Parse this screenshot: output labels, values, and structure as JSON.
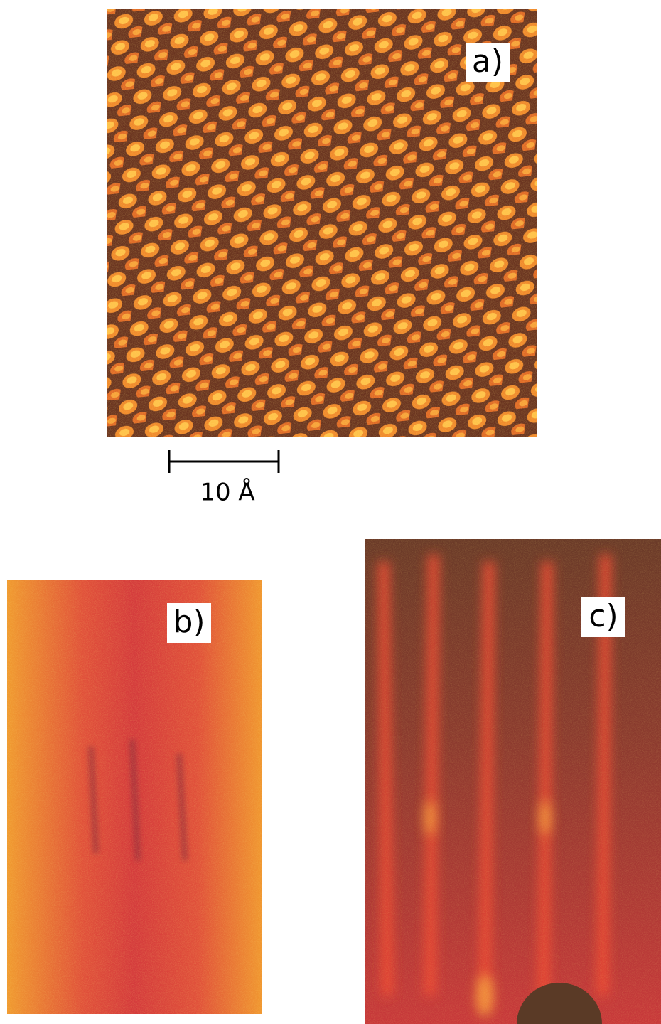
{
  "panels": [
    {
      "label": "a)"
    },
    {
      "label": "b)"
    },
    {
      "label": "c)"
    }
  ],
  "scale_bar": {
    "label": "10 Å"
  }
}
